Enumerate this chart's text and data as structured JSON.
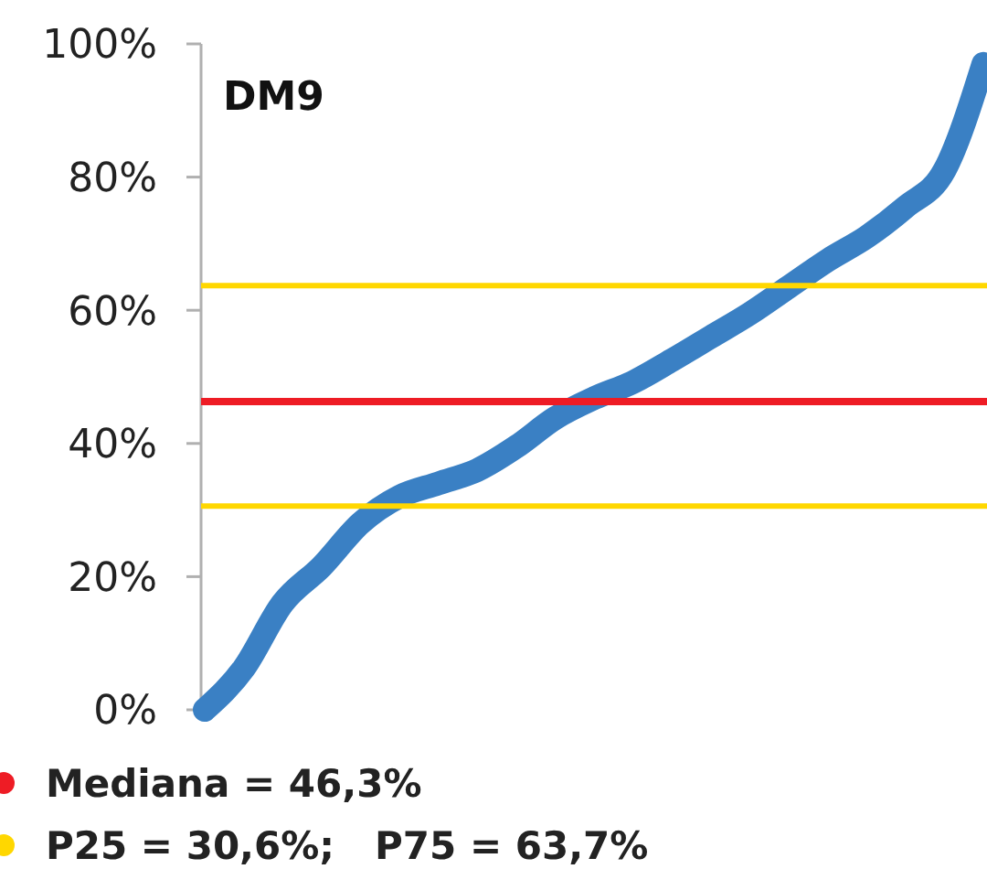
{
  "chart_data": {
    "type": "line",
    "title": "DM9",
    "categories": [
      null,
      null,
      null,
      null,
      null,
      null,
      null,
      null,
      null,
      null,
      null,
      null,
      null,
      null,
      null,
      null,
      null,
      null,
      null,
      null,
      null
    ],
    "series": [
      {
        "color": "#3a80c4",
        "values": [
          0,
          6.2,
          16,
          21.5,
          28,
          32,
          34,
          36,
          39.5,
          43.8,
          46.8,
          49.2,
          52.5,
          56,
          59.5,
          63.5,
          67.5,
          71,
          75.5,
          81,
          97
        ]
      }
    ],
    "ylim": [
      0,
      100
    ],
    "yticks": [
      {
        "value": 0,
        "label": "0%"
      },
      {
        "value": 20,
        "label": "20%"
      },
      {
        "value": 40,
        "label": "40%"
      },
      {
        "value": 60,
        "label": "60%"
      },
      {
        "value": 80,
        "label": "80%"
      },
      {
        "value": 100,
        "label": "100%"
      }
    ],
    "ref_lines": [
      {
        "axis": "y",
        "value": 46.3,
        "label": "Mediana = 46,3%",
        "color": "#ee1c25"
      },
      {
        "axis": "y",
        "value": 30.6,
        "label": "P25 = 30,6%;   P75 = 63,7%",
        "color": "#ffd700"
      },
      {
        "axis": "y",
        "value": 63.7,
        "color": "#ffd700"
      }
    ],
    "grid": false,
    "legend": "bottom left",
    "line_style": "solid"
  }
}
